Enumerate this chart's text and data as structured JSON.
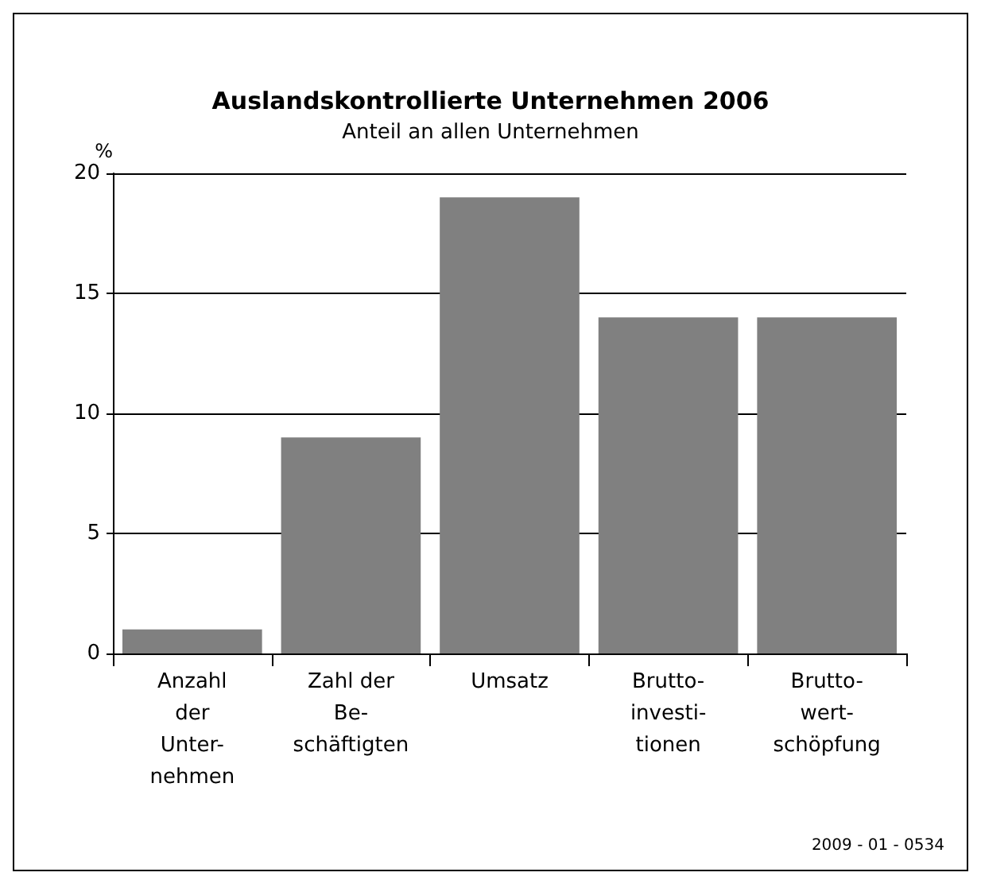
{
  "chart_data": {
    "type": "bar",
    "title": "Auslandskontrollierte Unternehmen 2006",
    "subtitle": "Anteil an allen Unternehmen",
    "ylabel": "%",
    "categories": [
      "Anzahl\nder\nUnter-\nnehmen",
      "Zahl der\nBe-\nschäftigten",
      "Umsatz",
      "Brutto-\ninvesti-\ntionen",
      "Brutto-\nwert-\nschöpfung"
    ],
    "values": [
      1,
      9,
      19,
      14,
      14
    ],
    "color": "#808080",
    "ylim": [
      0,
      20
    ],
    "yticks": [
      0,
      5,
      10,
      15,
      20
    ],
    "grid": "y",
    "annotations": [
      "2009 - 01 - 0534"
    ]
  }
}
